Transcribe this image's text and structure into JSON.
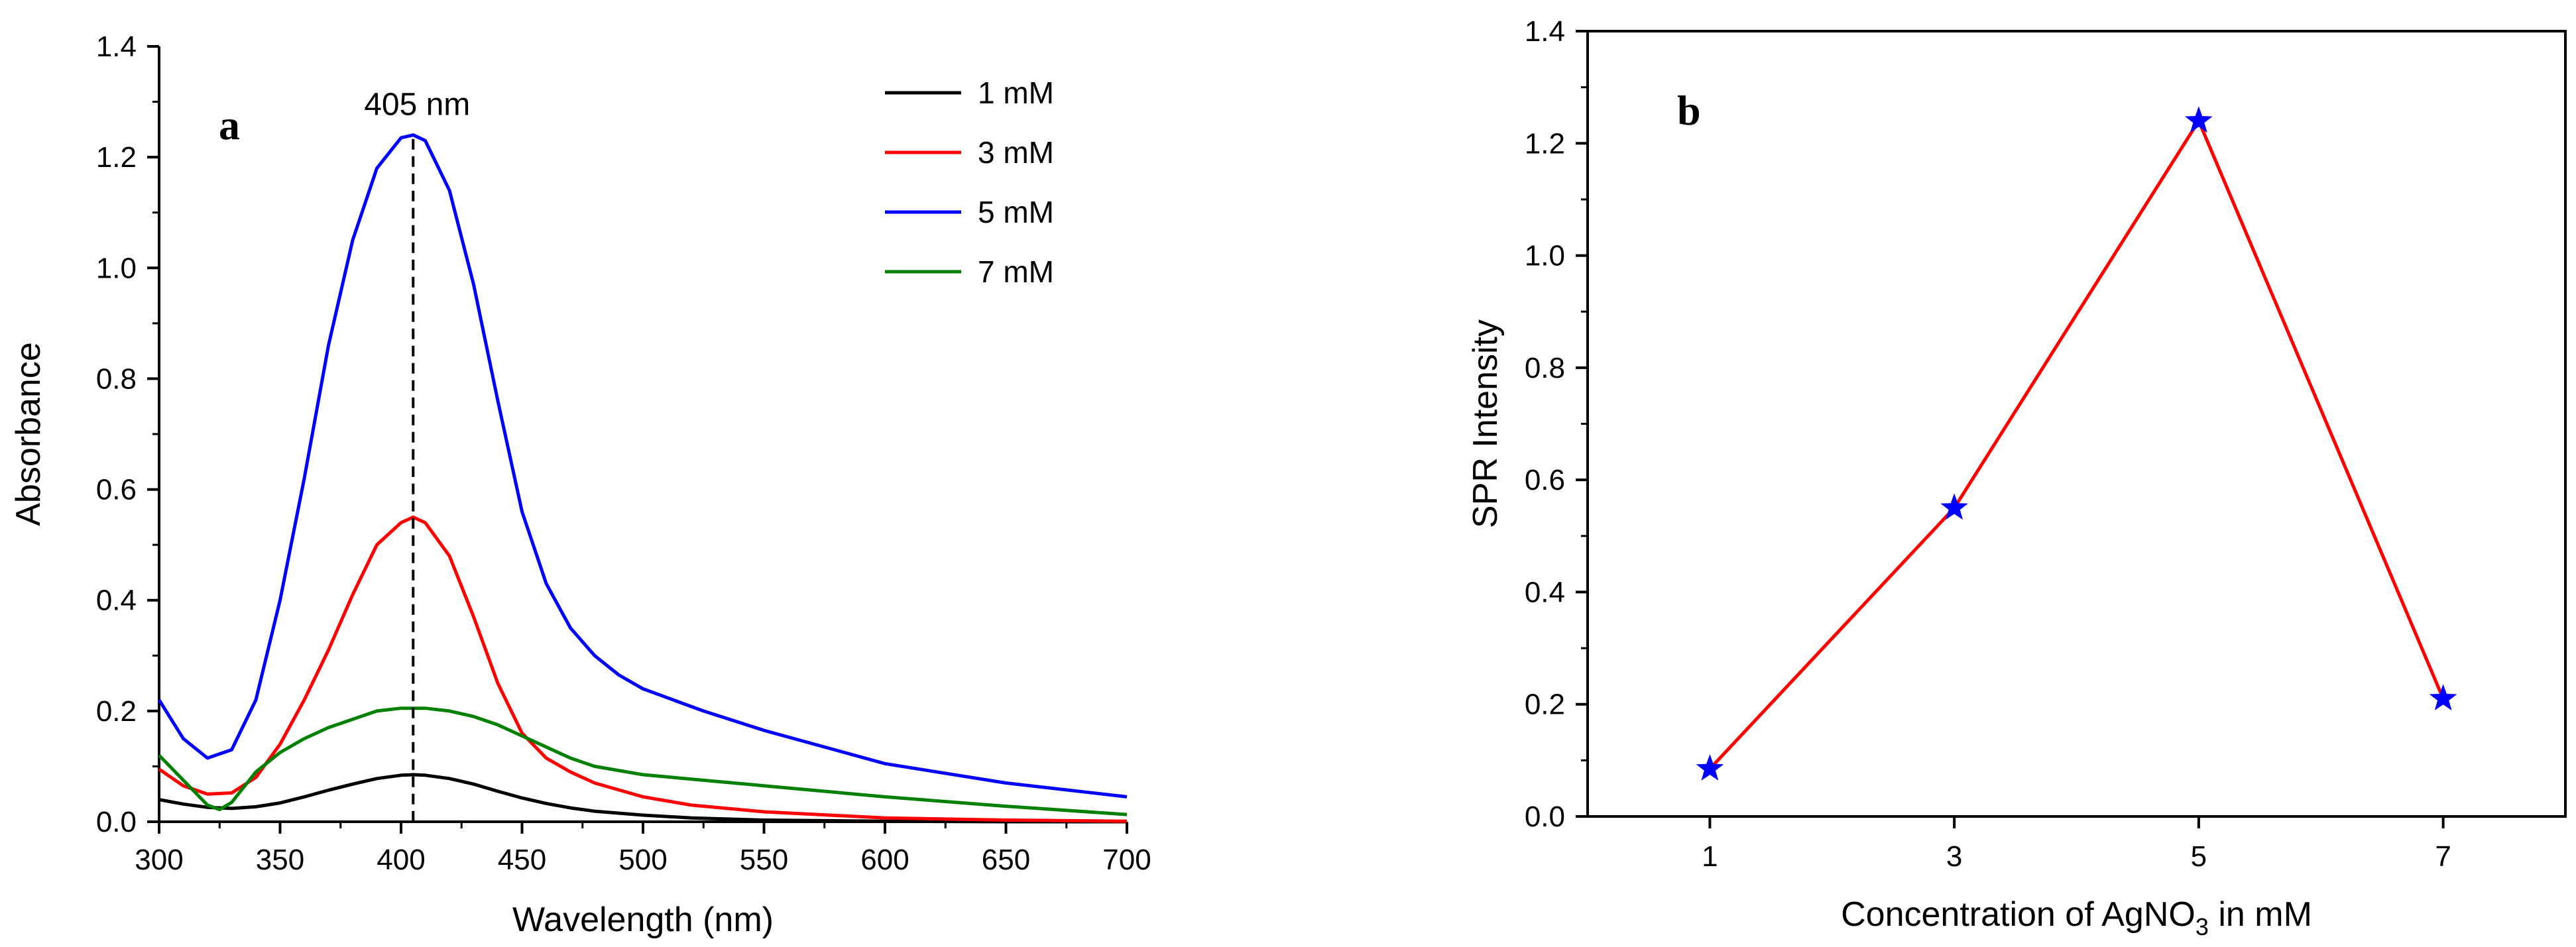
{
  "chart_data": [
    {
      "panel": "a",
      "type": "line",
      "title": "",
      "xlabel": "Wavelength (nm)",
      "ylabel": "Absorbance",
      "xlim": [
        300,
        700
      ],
      "ylim": [
        0,
        1.4
      ],
      "xticks": [
        "300",
        "350",
        "400",
        "450",
        "500",
        "550",
        "600",
        "650",
        "700"
      ],
      "yticks": [
        "0.0",
        "0.2",
        "0.4",
        "0.6",
        "0.8",
        "1.0",
        "1.2",
        "1.4"
      ],
      "annotation": {
        "text": "405 nm",
        "x": 405
      },
      "legend_position": "top-right",
      "series": [
        {
          "name": "1 mM",
          "color": "#000000",
          "x": [
            300,
            310,
            320,
            330,
            340,
            350,
            360,
            370,
            380,
            390,
            400,
            405,
            410,
            420,
            430,
            440,
            450,
            460,
            470,
            480,
            500,
            520,
            550,
            600,
            650,
            700
          ],
          "y": [
            0.04,
            0.032,
            0.026,
            0.024,
            0.027,
            0.034,
            0.045,
            0.057,
            0.068,
            0.078,
            0.084,
            0.085,
            0.084,
            0.078,
            0.068,
            0.055,
            0.043,
            0.033,
            0.025,
            0.019,
            0.012,
            0.007,
            0.003,
            0.001,
            0.0,
            0.0
          ]
        },
        {
          "name": "3 mM",
          "color": "#ff0000",
          "x": [
            300,
            310,
            320,
            330,
            340,
            350,
            360,
            370,
            380,
            390,
            400,
            405,
            410,
            420,
            430,
            440,
            450,
            460,
            470,
            480,
            500,
            520,
            550,
            600,
            650,
            700
          ],
          "y": [
            0.095,
            0.065,
            0.05,
            0.052,
            0.08,
            0.14,
            0.22,
            0.31,
            0.41,
            0.5,
            0.54,
            0.55,
            0.54,
            0.48,
            0.37,
            0.25,
            0.16,
            0.115,
            0.09,
            0.07,
            0.045,
            0.03,
            0.018,
            0.007,
            0.003,
            0.001
          ]
        },
        {
          "name": "5 mM",
          "color": "#0000ff",
          "x": [
            300,
            310,
            320,
            330,
            340,
            350,
            360,
            370,
            380,
            390,
            400,
            405,
            410,
            420,
            430,
            440,
            450,
            460,
            470,
            480,
            490,
            500,
            525,
            550,
            600,
            650,
            700
          ],
          "y": [
            0.22,
            0.15,
            0.115,
            0.13,
            0.22,
            0.4,
            0.62,
            0.86,
            1.05,
            1.18,
            1.235,
            1.24,
            1.23,
            1.14,
            0.97,
            0.76,
            0.56,
            0.43,
            0.35,
            0.3,
            0.265,
            0.24,
            0.2,
            0.165,
            0.105,
            0.07,
            0.045
          ]
        },
        {
          "name": "7 mM",
          "color": "#008000",
          "x": [
            300,
            310,
            320,
            325,
            330,
            340,
            350,
            360,
            370,
            380,
            390,
            400,
            405,
            410,
            420,
            430,
            440,
            450,
            460,
            470,
            480,
            500,
            550,
            600,
            650,
            700
          ],
          "y": [
            0.12,
            0.075,
            0.03,
            0.022,
            0.035,
            0.09,
            0.125,
            0.15,
            0.17,
            0.185,
            0.2,
            0.205,
            0.205,
            0.205,
            0.2,
            0.19,
            0.175,
            0.155,
            0.135,
            0.115,
            0.1,
            0.085,
            0.065,
            0.045,
            0.028,
            0.013
          ]
        }
      ]
    },
    {
      "panel": "b",
      "type": "line",
      "title": "",
      "xlabel_main": "Concentration of AgNO",
      "xlabel_sub": "3",
      "xlabel_tail": " in mM",
      "ylabel": "SPR Intensity",
      "xlim": [
        0,
        8
      ],
      "ylim": [
        0,
        1.4
      ],
      "xticks": [
        "1",
        "3",
        "5",
        "7"
      ],
      "yticks": [
        "0.0",
        "0.2",
        "0.4",
        "0.6",
        "0.8",
        "1.0",
        "1.2",
        "1.4"
      ],
      "line_color": "#ff0000",
      "marker_color": "#0000ff",
      "marker": "star",
      "x": [
        1,
        3,
        5,
        7
      ],
      "y": [
        0.085,
        0.55,
        1.24,
        0.21
      ]
    }
  ]
}
